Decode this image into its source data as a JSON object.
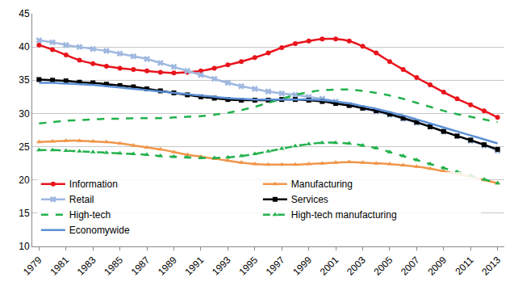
{
  "chart_data": {
    "type": "line",
    "x": [
      1979,
      1980,
      1981,
      1982,
      1983,
      1984,
      1985,
      1986,
      1987,
      1988,
      1989,
      1990,
      1991,
      1992,
      1993,
      1994,
      1995,
      1996,
      1997,
      1998,
      1999,
      2000,
      2001,
      2002,
      2003,
      2004,
      2005,
      2006,
      2007,
      2008,
      2009,
      2010,
      2011,
      2012,
      2013
    ],
    "xlim": [
      1978.5,
      2013.5
    ],
    "xticks": [
      1979,
      1981,
      1983,
      1985,
      1987,
      1989,
      1991,
      1993,
      1995,
      1997,
      1999,
      2001,
      2003,
      2005,
      2007,
      2009,
      2011,
      2013
    ],
    "ylim": [
      10,
      45
    ],
    "yticks": [
      10,
      15,
      20,
      25,
      30,
      35,
      40,
      45
    ],
    "grid": true,
    "legend": "bottom left",
    "series": [
      {
        "name": "Information",
        "color": "#e8141c",
        "marker": "circle",
        "line_style": "solid",
        "values": [
          40.3,
          39.6,
          38.8,
          38.0,
          37.5,
          37.1,
          36.8,
          36.6,
          36.4,
          36.2,
          36.1,
          36.2,
          36.4,
          36.8,
          37.3,
          37.8,
          38.4,
          39.1,
          39.9,
          40.5,
          40.9,
          41.2,
          41.2,
          40.9,
          40.1,
          39.1,
          37.8,
          36.6,
          35.4,
          34.3,
          33.2,
          32.2,
          31.3,
          30.4,
          29.4
        ]
      },
      {
        "name": "Manufacturing",
        "color": "#f0964a",
        "marker": "triangle-up",
        "line_style": "solid",
        "values": [
          25.7,
          25.8,
          25.9,
          25.9,
          25.8,
          25.7,
          25.5,
          25.2,
          24.9,
          24.6,
          24.2,
          23.8,
          23.5,
          23.2,
          22.9,
          22.6,
          22.4,
          22.3,
          22.3,
          22.3,
          22.4,
          22.5,
          22.6,
          22.7,
          22.6,
          22.5,
          22.4,
          22.2,
          22.0,
          21.7,
          21.3,
          20.9,
          20.5,
          20.0,
          19.5
        ]
      },
      {
        "name": "Retail",
        "color": "#9fb8e0",
        "marker": "x",
        "line_style": "solid",
        "values": [
          41.0,
          40.7,
          40.3,
          40.0,
          39.7,
          39.4,
          39.0,
          38.6,
          38.2,
          37.6,
          37.0,
          36.4,
          35.8,
          35.2,
          34.6,
          34.1,
          33.7,
          33.3,
          33.0,
          32.8,
          32.5,
          32.2,
          31.8,
          31.3,
          30.8,
          30.3,
          29.8,
          29.2,
          28.6,
          28.0,
          27.3,
          26.6,
          25.9,
          25.2,
          24.4
        ]
      },
      {
        "name": "Services",
        "color": "#000000",
        "marker": "square",
        "line_style": "solid",
        "values": [
          35.1,
          35.0,
          34.9,
          34.7,
          34.6,
          34.4,
          34.2,
          34.0,
          33.7,
          33.4,
          33.1,
          32.8,
          32.5,
          32.3,
          32.1,
          32.0,
          32.0,
          32.0,
          32.1,
          32.1,
          32.0,
          31.8,
          31.5,
          31.2,
          30.8,
          30.4,
          29.9,
          29.3,
          28.7,
          28.0,
          27.3,
          26.6,
          26.0,
          25.3,
          24.6
        ]
      },
      {
        "name": "High-tech",
        "color": "#22b14c",
        "marker": "none",
        "line_style": "dash",
        "values": [
          28.5,
          28.7,
          28.9,
          29.0,
          29.1,
          29.2,
          29.2,
          29.3,
          29.3,
          29.3,
          29.4,
          29.5,
          29.6,
          29.8,
          30.1,
          30.5,
          31.0,
          31.6,
          32.2,
          32.8,
          33.2,
          33.5,
          33.6,
          33.6,
          33.4,
          33.1,
          32.7,
          32.2,
          31.6,
          31.0,
          30.4,
          29.9,
          29.5,
          29.1,
          28.7
        ]
      },
      {
        "name": "High-tech manufacturing",
        "color": "#22b14c",
        "marker": "triangle-up",
        "line_style": "dash",
        "values": [
          24.5,
          24.5,
          24.4,
          24.3,
          24.2,
          24.1,
          24.0,
          23.9,
          23.8,
          23.6,
          23.5,
          23.4,
          23.3,
          23.3,
          23.4,
          23.6,
          23.9,
          24.3,
          24.7,
          25.1,
          25.4,
          25.6,
          25.6,
          25.5,
          25.2,
          24.8,
          24.2,
          23.6,
          23.0,
          22.4,
          21.8,
          21.2,
          20.7,
          20.1,
          19.5
        ]
      },
      {
        "name": "Economywide",
        "color": "#5b8fd4",
        "marker": "none",
        "line_style": "solid",
        "values": [
          34.6,
          34.6,
          34.5,
          34.4,
          34.3,
          34.1,
          33.9,
          33.7,
          33.5,
          33.3,
          33.1,
          32.9,
          32.7,
          32.5,
          32.3,
          32.2,
          32.1,
          32.1,
          32.1,
          32.1,
          32.1,
          32.0,
          31.8,
          31.5,
          31.1,
          30.7,
          30.2,
          29.7,
          29.1,
          28.5,
          27.9,
          27.3,
          26.7,
          26.1,
          25.5
        ]
      }
    ]
  }
}
